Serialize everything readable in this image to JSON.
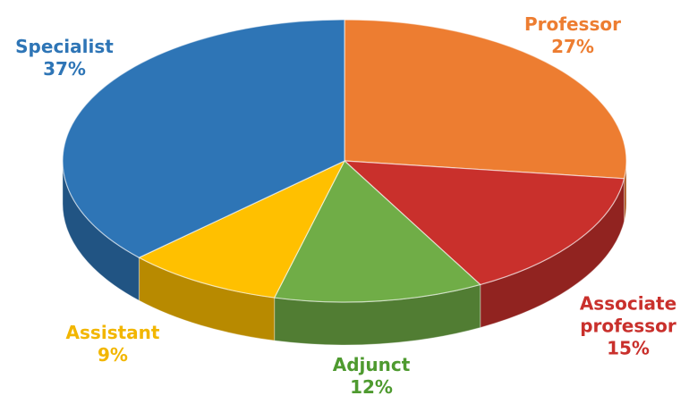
{
  "chart_data": {
    "type": "pie",
    "categories": [
      "Professor",
      "Associate professor",
      "Adjunct",
      "Assistant",
      "Specialist"
    ],
    "values": [
      27,
      15,
      12,
      9,
      37
    ],
    "value_labels": [
      "27%",
      "15%",
      "12%",
      "9%",
      "37%"
    ],
    "colors": [
      "#ed7d31",
      "#c9302c",
      "#70ad47",
      "#ffc000",
      "#2e75b6"
    ]
  }
}
